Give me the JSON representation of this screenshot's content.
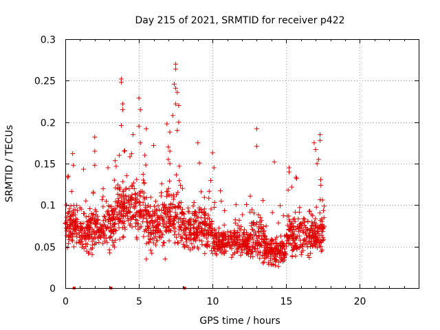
{
  "chart_data": {
    "type": "scatter",
    "title": "Day 215 of 2021, SRMTID for receiver p422",
    "xlabel": "GPS time / hours",
    "ylabel": "SRMTID / TECUs",
    "xlim": [
      0,
      24
    ],
    "ylim": [
      0,
      0.3
    ],
    "x_ticks": [
      0,
      5,
      10,
      15,
      20
    ],
    "y_ticks": [
      0,
      0.05,
      0.1,
      0.15,
      0.2,
      0.25,
      0.3
    ],
    "x_tick_labels": [
      "0",
      "5",
      "10",
      "15",
      "20"
    ],
    "y_tick_labels": [
      "0",
      "0.05",
      "0.1",
      "0.15",
      "0.2",
      "0.25",
      "0.3"
    ],
    "grid": true,
    "marker": "plus",
    "color": "#e00000",
    "x_range_of_data": [
      0,
      17.6
    ],
    "baseline_markers_x": [
      0.6,
      3.1,
      8.1
    ],
    "series": [
      {
        "name": "SRMTID",
        "segments": [
          {
            "x0": 0.0,
            "x1": 1.0,
            "center": 0.075,
            "spread": 0.035
          },
          {
            "x0": 1.0,
            "x1": 2.5,
            "center": 0.07,
            "spread": 0.035
          },
          {
            "x0": 2.5,
            "x1": 3.5,
            "center": 0.075,
            "spread": 0.04
          },
          {
            "x0": 3.5,
            "x1": 5.5,
            "center": 0.095,
            "spread": 0.05
          },
          {
            "x0": 5.5,
            "x1": 6.5,
            "center": 0.075,
            "spread": 0.045
          },
          {
            "x0": 6.5,
            "x1": 8.0,
            "center": 0.085,
            "spread": 0.055
          },
          {
            "x0": 8.0,
            "x1": 10.0,
            "center": 0.07,
            "spread": 0.04
          },
          {
            "x0": 10.0,
            "x1": 12.5,
            "center": 0.055,
            "spread": 0.025
          },
          {
            "x0": 12.5,
            "x1": 13.5,
            "center": 0.06,
            "spread": 0.035
          },
          {
            "x0": 13.5,
            "x1": 15.0,
            "center": 0.045,
            "spread": 0.025
          },
          {
            "x0": 15.0,
            "x1": 17.6,
            "center": 0.065,
            "spread": 0.035
          }
        ],
        "peaks": [
          {
            "x": 0.2,
            "y": 0.135
          },
          {
            "x": 0.5,
            "y": 0.162
          },
          {
            "x": 0.55,
            "y": 0.148
          },
          {
            "x": 2.0,
            "y": 0.182
          },
          {
            "x": 2.0,
            "y": 0.165
          },
          {
            "x": 2.0,
            "y": 0.148
          },
          {
            "x": 2.9,
            "y": 0.145
          },
          {
            "x": 3.8,
            "y": 0.252
          },
          {
            "x": 3.8,
            "y": 0.248
          },
          {
            "x": 3.9,
            "y": 0.222
          },
          {
            "x": 3.9,
            "y": 0.215
          },
          {
            "x": 3.8,
            "y": 0.196
          },
          {
            "x": 4.0,
            "y": 0.165
          },
          {
            "x": 4.6,
            "y": 0.185
          },
          {
            "x": 5.0,
            "y": 0.229
          },
          {
            "x": 5.1,
            "y": 0.215
          },
          {
            "x": 5.0,
            "y": 0.195
          },
          {
            "x": 5.1,
            "y": 0.175
          },
          {
            "x": 5.5,
            "y": 0.192
          },
          {
            "x": 5.4,
            "y": 0.16
          },
          {
            "x": 6.0,
            "y": 0.172
          },
          {
            "x": 6.9,
            "y": 0.198
          },
          {
            "x": 7.0,
            "y": 0.17
          },
          {
            "x": 7.1,
            "y": 0.188
          },
          {
            "x": 7.1,
            "y": 0.165
          },
          {
            "x": 7.3,
            "y": 0.208
          },
          {
            "x": 7.4,
            "y": 0.246
          },
          {
            "x": 7.5,
            "y": 0.27
          },
          {
            "x": 7.5,
            "y": 0.264
          },
          {
            "x": 7.5,
            "y": 0.241
          },
          {
            "x": 7.6,
            "y": 0.236
          },
          {
            "x": 7.5,
            "y": 0.222
          },
          {
            "x": 7.7,
            "y": 0.22
          },
          {
            "x": 7.7,
            "y": 0.2
          },
          {
            "x": 7.6,
            "y": 0.19
          },
          {
            "x": 7.1,
            "y": 0.15
          },
          {
            "x": 9.0,
            "y": 0.175
          },
          {
            "x": 10.0,
            "y": 0.163
          },
          {
            "x": 10.1,
            "y": 0.145
          },
          {
            "x": 13.0,
            "y": 0.192
          },
          {
            "x": 13.0,
            "y": 0.171
          },
          {
            "x": 14.2,
            "y": 0.152
          },
          {
            "x": 15.2,
            "y": 0.145
          },
          {
            "x": 15.2,
            "y": 0.14
          },
          {
            "x": 16.9,
            "y": 0.175
          },
          {
            "x": 17.0,
            "y": 0.167
          },
          {
            "x": 17.2,
            "y": 0.155
          },
          {
            "x": 17.3,
            "y": 0.185
          },
          {
            "x": 17.3,
            "y": 0.178
          },
          {
            "x": 17.1,
            "y": 0.15
          }
        ]
      }
    ]
  }
}
